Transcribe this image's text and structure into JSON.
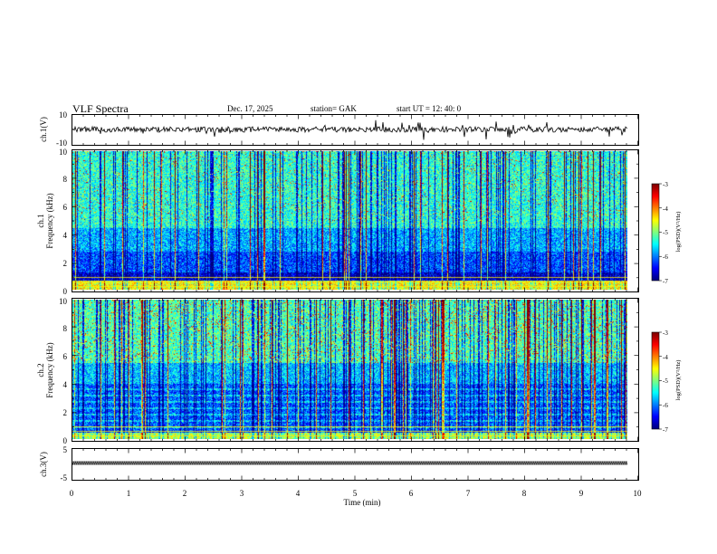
{
  "header": {
    "title": "VLF  Spectra",
    "date": "Dec. 17,  2025",
    "station": "station= GAK",
    "start_ut": "start  UT  =    12: 40: 0"
  },
  "chart_data": [
    {
      "type": "line",
      "panel": "ch1-waveform",
      "ylabel": "ch.1(V)",
      "ylim": [
        -10,
        10
      ],
      "yticks": [
        "10",
        "-10"
      ],
      "xlim": [
        0,
        10
      ]
    },
    {
      "type": "heatmap",
      "panel": "ch1-spectrogram",
      "ylabel": "ch.1\nFrequency (kHz)",
      "ylabel_lines": [
        "ch.1",
        "Frequency  (kHz)"
      ],
      "ylim": [
        0,
        10
      ],
      "yticks": [
        "0",
        "2",
        "4",
        "6",
        "8",
        "10"
      ],
      "xlim": [
        0,
        10
      ],
      "colorbar": {
        "label": "log(PSD)(V²/Hz)",
        "range": [
          -7,
          -3
        ],
        "ticks": [
          "-3",
          "-4",
          "-5",
          "-6",
          "-7"
        ]
      }
    },
    {
      "type": "heatmap",
      "panel": "ch2-spectrogram",
      "ylabel_lines": [
        "ch.2",
        "Frequency  (kHz)"
      ],
      "ylim": [
        0,
        10
      ],
      "yticks": [
        "0",
        "2",
        "4",
        "6",
        "8",
        "10"
      ],
      "xlim": [
        0,
        10
      ],
      "colorbar": {
        "label": "log(PSD)(V²/Hz)",
        "range": [
          -7,
          -3
        ],
        "ticks": [
          "-3",
          "-4",
          "-5",
          "-6",
          "-7"
        ]
      }
    },
    {
      "type": "line",
      "panel": "ch3-waveform",
      "ylabel": "ch.3(V)",
      "ylim": [
        -5,
        5
      ],
      "yticks": [
        "5",
        "-5"
      ],
      "xlim": [
        0,
        10
      ]
    }
  ],
  "x_axis": {
    "label": "Time  (min)",
    "ticks": [
      "0",
      "1",
      "2",
      "3",
      "4",
      "5",
      "6",
      "7",
      "8",
      "9",
      "10"
    ],
    "range": [
      0,
      10
    ]
  },
  "colors": {
    "jet_low": "#00007f",
    "jet_mid": "#00ff00",
    "jet_high": "#ff0000",
    "trace": "#000000"
  }
}
